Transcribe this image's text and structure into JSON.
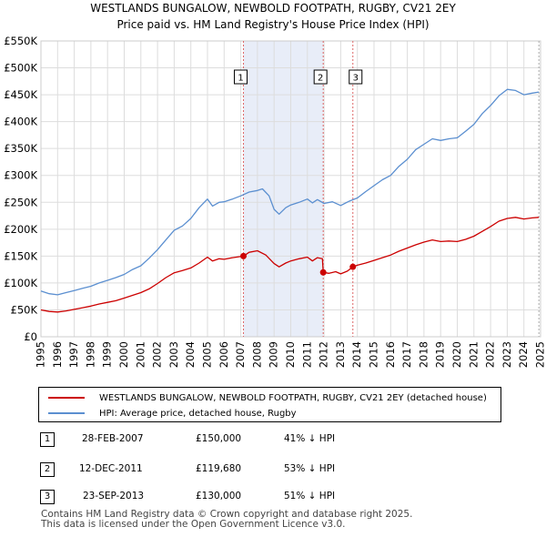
{
  "colors": {
    "property_line": "#cc0000",
    "hpi_line": "#5b8fd0",
    "shade": "#e8edf8",
    "marker_line": "#dd6666",
    "grid": "#dddddd"
  },
  "chart_data": {
    "type": "line",
    "title": "WESTLANDS BUNGALOW, NEWBOLD FOOTPATH, RUGBY, CV21 2EY",
    "subtitle": "Price paid vs. HM Land Registry's House Price Index (HPI)",
    "xlim": [
      1995,
      2025
    ],
    "ylim": [
      0,
      550000
    ],
    "y_ticks": [
      0,
      50000,
      100000,
      150000,
      200000,
      250000,
      300000,
      350000,
      400000,
      450000,
      500000,
      550000
    ],
    "y_tick_labels": [
      "£0",
      "£50K",
      "£100K",
      "£150K",
      "£200K",
      "£250K",
      "£300K",
      "£350K",
      "£400K",
      "£450K",
      "£500K",
      "£550K"
    ],
    "x_ticks": [
      1995,
      1996,
      1997,
      1998,
      1999,
      2000,
      2001,
      2002,
      2003,
      2004,
      2005,
      2006,
      2007,
      2008,
      2009,
      2010,
      2011,
      2012,
      2013,
      2014,
      2015,
      2016,
      2017,
      2018,
      2019,
      2020,
      2021,
      2022,
      2023,
      2024,
      2025
    ],
    "grid": true,
    "shaded_range": [
      2007.16,
      2011.95
    ],
    "series": [
      {
        "name": "WESTLANDS BUNGALOW, NEWBOLD FOOTPATH, RUGBY, CV21 2EY (detached house)",
        "points": [
          [
            1995.0,
            50000
          ],
          [
            1995.5,
            47000
          ],
          [
            1996.0,
            46000
          ],
          [
            1996.5,
            48000
          ],
          [
            1997.0,
            51000
          ],
          [
            1997.5,
            54000
          ],
          [
            1998.0,
            57000
          ],
          [
            1998.5,
            61000
          ],
          [
            1999.0,
            64000
          ],
          [
            1999.5,
            67000
          ],
          [
            2000.0,
            72000
          ],
          [
            2000.5,
            77000
          ],
          [
            2001.0,
            82000
          ],
          [
            2001.5,
            89000
          ],
          [
            2002.0,
            99000
          ],
          [
            2002.5,
            110000
          ],
          [
            2003.0,
            119000
          ],
          [
            2003.5,
            123000
          ],
          [
            2004.0,
            128000
          ],
          [
            2004.5,
            137000
          ],
          [
            2005.0,
            148000
          ],
          [
            2005.3,
            141000
          ],
          [
            2005.7,
            145000
          ],
          [
            2006.0,
            144000
          ],
          [
            2006.5,
            147000
          ],
          [
            2007.16,
            150000
          ],
          [
            2007.5,
            157000
          ],
          [
            2008.0,
            160000
          ],
          [
            2008.5,
            152000
          ],
          [
            2009.0,
            136000
          ],
          [
            2009.3,
            130000
          ],
          [
            2009.7,
            137000
          ],
          [
            2010.0,
            141000
          ],
          [
            2010.5,
            145000
          ],
          [
            2011.0,
            148000
          ],
          [
            2011.3,
            141000
          ],
          [
            2011.6,
            147000
          ],
          [
            2011.9,
            145000
          ],
          [
            2011.95,
            119680
          ],
          [
            2012.3,
            118000
          ],
          [
            2012.7,
            121000
          ],
          [
            2013.0,
            117000
          ],
          [
            2013.4,
            122000
          ],
          [
            2013.73,
            130000
          ],
          [
            2014.0,
            133000
          ],
          [
            2014.5,
            137000
          ],
          [
            2015.0,
            142000
          ],
          [
            2015.5,
            147000
          ],
          [
            2016.0,
            152000
          ],
          [
            2016.5,
            159000
          ],
          [
            2017.0,
            165000
          ],
          [
            2017.5,
            171000
          ],
          [
            2018.0,
            176000
          ],
          [
            2018.5,
            180000
          ],
          [
            2019.0,
            177000
          ],
          [
            2019.5,
            178000
          ],
          [
            2020.0,
            177000
          ],
          [
            2020.5,
            181000
          ],
          [
            2021.0,
            187000
          ],
          [
            2021.5,
            196000
          ],
          [
            2022.0,
            205000
          ],
          [
            2022.5,
            215000
          ],
          [
            2023.0,
            220000
          ],
          [
            2023.5,
            222000
          ],
          [
            2024.0,
            219000
          ],
          [
            2024.5,
            221000
          ],
          [
            2024.9,
            222000
          ]
        ]
      },
      {
        "name": "HPI: Average price, detached house, Rugby",
        "points": [
          [
            1995.0,
            85000
          ],
          [
            1995.5,
            80000
          ],
          [
            1996.0,
            78000
          ],
          [
            1996.5,
            82000
          ],
          [
            1997.0,
            86000
          ],
          [
            1997.5,
            90000
          ],
          [
            1998.0,
            94000
          ],
          [
            1998.5,
            100000
          ],
          [
            1999.0,
            105000
          ],
          [
            1999.5,
            110000
          ],
          [
            2000.0,
            116000
          ],
          [
            2000.5,
            125000
          ],
          [
            2001.0,
            132000
          ],
          [
            2001.5,
            146000
          ],
          [
            2002.0,
            162000
          ],
          [
            2002.5,
            180000
          ],
          [
            2003.0,
            198000
          ],
          [
            2003.5,
            206000
          ],
          [
            2004.0,
            220000
          ],
          [
            2004.5,
            240000
          ],
          [
            2005.0,
            256000
          ],
          [
            2005.3,
            243000
          ],
          [
            2005.7,
            250000
          ],
          [
            2006.0,
            251000
          ],
          [
            2006.5,
            256000
          ],
          [
            2007.0,
            262000
          ],
          [
            2007.5,
            269000
          ],
          [
            2008.0,
            272000
          ],
          [
            2008.3,
            275000
          ],
          [
            2008.7,
            262000
          ],
          [
            2009.0,
            237000
          ],
          [
            2009.3,
            228000
          ],
          [
            2009.7,
            240000
          ],
          [
            2010.0,
            245000
          ],
          [
            2010.5,
            250000
          ],
          [
            2011.0,
            256000
          ],
          [
            2011.3,
            249000
          ],
          [
            2011.6,
            255000
          ],
          [
            2012.0,
            248000
          ],
          [
            2012.5,
            251000
          ],
          [
            2013.0,
            244000
          ],
          [
            2013.5,
            252000
          ],
          [
            2014.0,
            258000
          ],
          [
            2014.5,
            270000
          ],
          [
            2015.0,
            281000
          ],
          [
            2015.5,
            292000
          ],
          [
            2016.0,
            300000
          ],
          [
            2016.5,
            317000
          ],
          [
            2017.0,
            330000
          ],
          [
            2017.5,
            348000
          ],
          [
            2018.0,
            358000
          ],
          [
            2018.5,
            368000
          ],
          [
            2019.0,
            365000
          ],
          [
            2019.5,
            368000
          ],
          [
            2020.0,
            370000
          ],
          [
            2020.5,
            382000
          ],
          [
            2021.0,
            395000
          ],
          [
            2021.5,
            415000
          ],
          [
            2022.0,
            430000
          ],
          [
            2022.5,
            448000
          ],
          [
            2023.0,
            460000
          ],
          [
            2023.5,
            458000
          ],
          [
            2024.0,
            450000
          ],
          [
            2024.5,
            453000
          ],
          [
            2024.9,
            455000
          ]
        ]
      }
    ],
    "transactions": [
      {
        "label": "1",
        "x": 2007.16,
        "y": 150000
      },
      {
        "label": "2",
        "x": 2011.95,
        "y": 119680
      },
      {
        "label": "3",
        "x": 2013.73,
        "y": 130000
      }
    ]
  },
  "legend": {
    "items": [
      {
        "label": "WESTLANDS BUNGALOW, NEWBOLD FOOTPATH, RUGBY, CV21 2EY (detached house)",
        "color": "#cc0000"
      },
      {
        "label": "HPI: Average price, detached house, Rugby",
        "color": "#5b8fd0"
      }
    ]
  },
  "table": {
    "rows": [
      {
        "num": "1",
        "date": "28-FEB-2007",
        "price": "£150,000",
        "hpi": "41% ↓ HPI"
      },
      {
        "num": "2",
        "date": "12-DEC-2011",
        "price": "£119,680",
        "hpi": "53% ↓ HPI"
      },
      {
        "num": "3",
        "date": "23-SEP-2013",
        "price": "£130,000",
        "hpi": "51% ↓ HPI"
      }
    ]
  },
  "footer": {
    "line1": "Contains HM Land Registry data © Crown copyright and database right 2025.",
    "line2": "This data is licensed under the Open Government Licence v3.0."
  }
}
